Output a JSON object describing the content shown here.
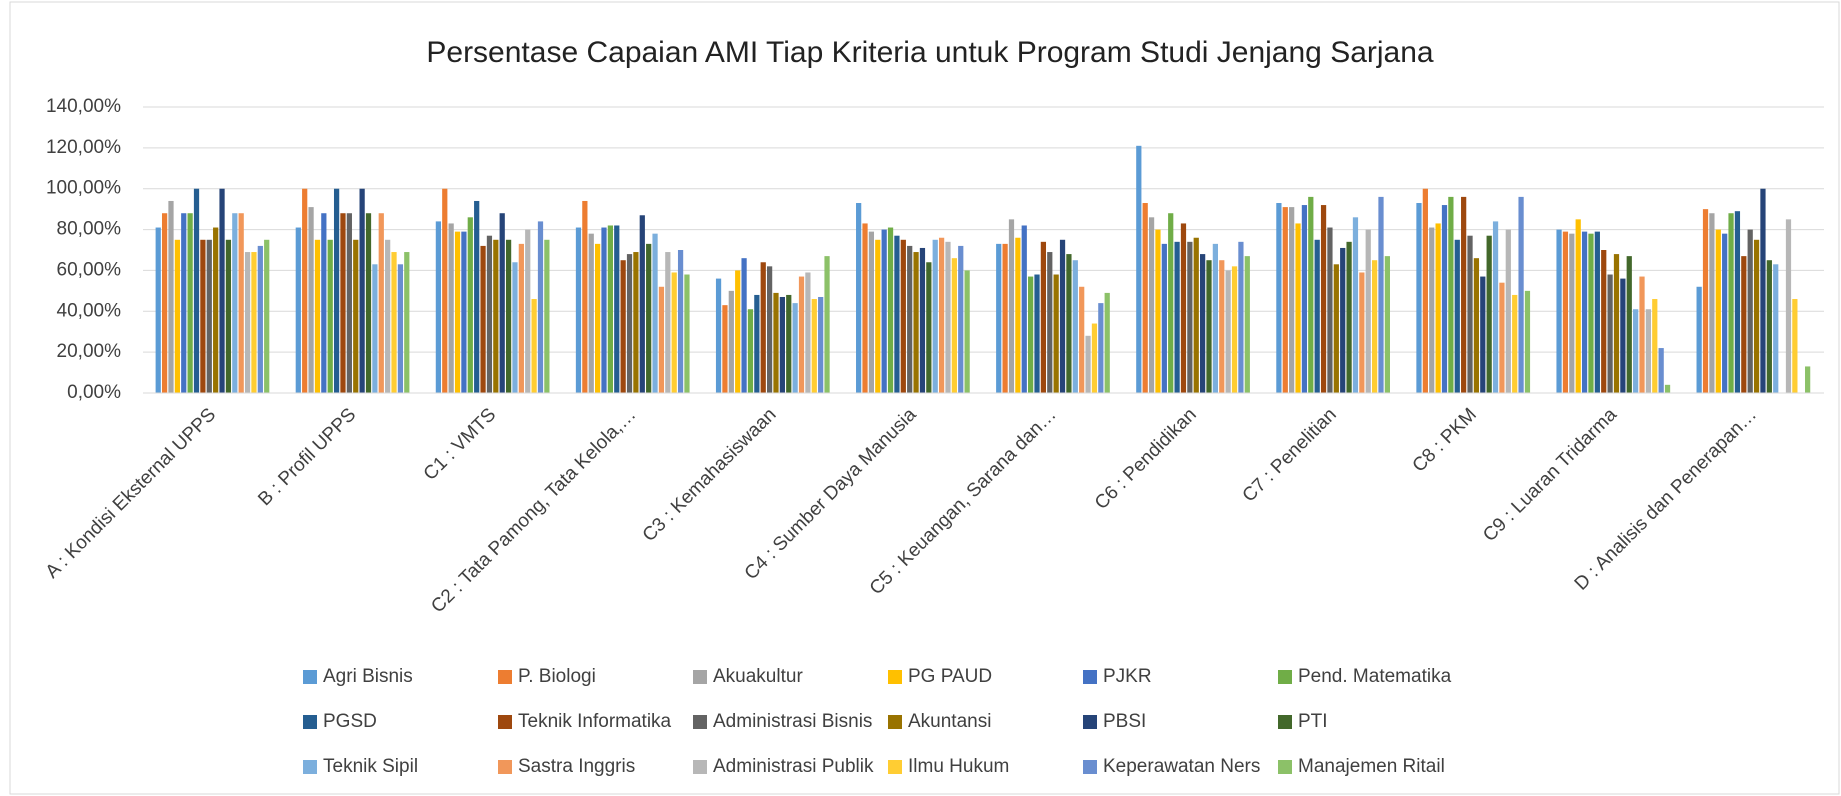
{
  "chart_data": {
    "type": "bar",
    "title": "Persentase Capaian AMI Tiap Kriteria untuk Program Studi Jenjang Sarjana",
    "categories": [
      "A : Kondisi Eksternal UPPS",
      "B : Profil UPPS",
      "C1 : VMTS",
      "C2 : Tata Pamong, Tata Kelola,…",
      "C3 : Kemahasiswaan",
      "C4 : Sumber Daya Manusia",
      "C5 : Keuangan, Sarana dan…",
      "C6 : Pendidikan",
      "C7 : Penelitian",
      "C8 : PKM",
      "C9 : Luaran Tridarma",
      "D : Analisis dan Penerapan…"
    ],
    "series": [
      {
        "name": "Agri Bisnis",
        "color": "#5b9bd5",
        "values": [
          81,
          81,
          84,
          81,
          56,
          93,
          73,
          121,
          93,
          93,
          80,
          52
        ]
      },
      {
        "name": "P. Biologi",
        "color": "#ed7d31",
        "values": [
          88,
          100,
          100,
          94,
          43,
          83,
          73,
          93,
          91,
          100,
          79,
          90
        ]
      },
      {
        "name": "Akuakultur",
        "color": "#a5a5a5",
        "values": [
          94,
          91,
          83,
          78,
          50,
          79,
          85,
          86,
          91,
          81,
          78,
          88
        ]
      },
      {
        "name": "PG PAUD",
        "color": "#ffc000",
        "values": [
          75,
          75,
          79,
          73,
          60,
          75,
          76,
          80,
          83,
          83,
          85,
          80
        ]
      },
      {
        "name": "PJKR",
        "color": "#4472c4",
        "values": [
          88,
          88,
          79,
          81,
          66,
          80,
          82,
          73,
          92,
          92,
          79,
          78
        ]
      },
      {
        "name": "Pend. Matematika",
        "color": "#70ad47",
        "values": [
          88,
          75,
          86,
          82,
          41,
          81,
          57,
          88,
          96,
          96,
          78,
          88
        ]
      },
      {
        "name": "PGSD",
        "color": "#255e91",
        "values": [
          100,
          100,
          94,
          82,
          48,
          77,
          58,
          74,
          75,
          75,
          79,
          89
        ]
      },
      {
        "name": "Teknik Informatika",
        "color": "#9e480e",
        "values": [
          75,
          88,
          72,
          65,
          64,
          75,
          74,
          83,
          92,
          96,
          70,
          67
        ]
      },
      {
        "name": "Administrasi Bisnis",
        "color": "#636363",
        "values": [
          75,
          88,
          77,
          68,
          62,
          72,
          69,
          74,
          81,
          77,
          58,
          80
        ]
      },
      {
        "name": "Akuntansi",
        "color": "#997300",
        "values": [
          81,
          75,
          75,
          69,
          49,
          69,
          58,
          76,
          63,
          66,
          68,
          75
        ]
      },
      {
        "name": "PBSI",
        "color": "#264478",
        "values": [
          100,
          100,
          88,
          87,
          47,
          71,
          75,
          68,
          71,
          57,
          56,
          100
        ]
      },
      {
        "name": "PTI",
        "color": "#43682b",
        "values": [
          75,
          88,
          75,
          73,
          48,
          64,
          68,
          65,
          74,
          77,
          67,
          65
        ]
      },
      {
        "name": "Teknik Sipil",
        "color": "#7cafdd",
        "values": [
          88,
          63,
          64,
          78,
          44,
          75,
          65,
          73,
          86,
          84,
          41,
          63
        ]
      },
      {
        "name": "Sastra Inggris",
        "color": "#f1975a",
        "values": [
          88,
          88,
          73,
          52,
          57,
          76,
          52,
          65,
          59,
          54,
          57,
          0
        ]
      },
      {
        "name": "Administrasi Publik",
        "color": "#b7b7b7",
        "values": [
          69,
          75,
          80,
          69,
          59,
          74,
          28,
          60,
          80,
          80,
          41,
          85
        ]
      },
      {
        "name": "Ilmu Hukum",
        "color": "#ffcd33",
        "values": [
          69,
          69,
          46,
          59,
          46,
          66,
          34,
          62,
          65,
          48,
          46,
          46
        ]
      },
      {
        "name": "Keperawatan Ners",
        "color": "#698ed0",
        "values": [
          72,
          63,
          84,
          70,
          47,
          72,
          44,
          74,
          96,
          96,
          22,
          0
        ]
      },
      {
        "name": "Manajemen Ritail",
        "color": "#8cc168",
        "values": [
          75,
          69,
          75,
          58,
          67,
          60,
          49,
          67,
          67,
          50,
          4,
          13
        ]
      }
    ],
    "ylim": [
      0,
      140
    ],
    "yticks": [
      {
        "value": 0,
        "label": "0,00%"
      },
      {
        "value": 20,
        "label": "20,00%"
      },
      {
        "value": 40,
        "label": "40,00%"
      },
      {
        "value": 60,
        "label": "60,00%"
      },
      {
        "value": 80,
        "label": "80,00%"
      },
      {
        "value": 100,
        "label": "100,00%"
      },
      {
        "value": 120,
        "label": "120,00%"
      },
      {
        "value": 140,
        "label": "140,00%"
      }
    ],
    "grid": true,
    "legend": "bottom"
  }
}
